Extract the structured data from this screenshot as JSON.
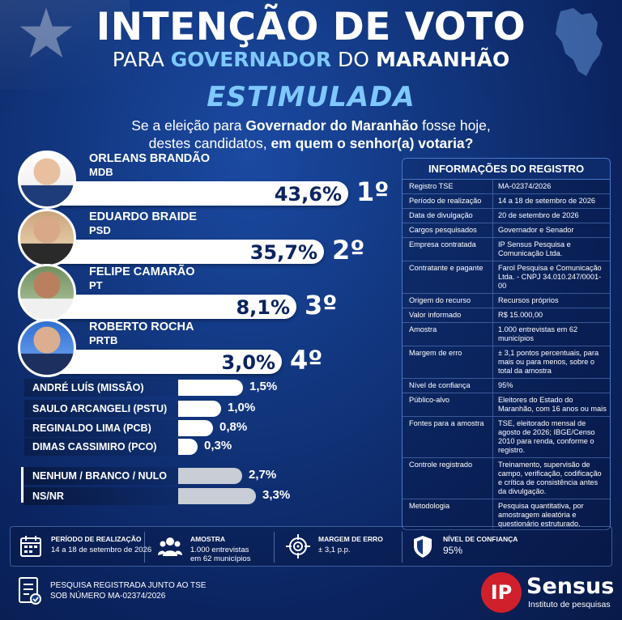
{
  "header": {
    "title": "INTENÇÃO DE VOTO",
    "subtitle_pre": "PARA",
    "subtitle_hl": "GOVERNADOR",
    "subtitle_mid": "DO",
    "subtitle_state": "MARANHÃO",
    "type": "ESTIMULADA",
    "question_1a": "Se a eleição para",
    "question_1b": "Governador do Maranhão",
    "question_1c": "fosse hoje,",
    "question_2a": "destes candidatos,",
    "question_2b": "em quem o senhor(a) votaria?"
  },
  "chart_data": {
    "type": "bar",
    "orientation": "horizontal",
    "unit": "%",
    "candidates": [
      {
        "name": "ORLEANS BRANDÃO",
        "party": "MDB",
        "value": 43.6,
        "label": "43,6%",
        "rank": "1º"
      },
      {
        "name": "EDUARDO BRAIDE",
        "party": "PSD",
        "value": 35.7,
        "label": "35,7%",
        "rank": "2º"
      },
      {
        "name": "FELIPE CAMARÃO",
        "party": "PT",
        "value": 8.1,
        "label": "8,1%",
        "rank": "3º"
      },
      {
        "name": "ROBERTO ROCHA",
        "party": "PRTB",
        "value": 3.0,
        "label": "3,0%",
        "rank": "4º"
      }
    ],
    "minor": [
      {
        "name": "ANDRÉ LUÍS (MISSÃO)",
        "value": 1.5,
        "label": "1,5%"
      },
      {
        "name": "SAULO ARCANGELI (PSTU)",
        "value": 1.0,
        "label": "1,0%"
      },
      {
        "name": "REGINALDO LIMA (PCB)",
        "value": 0.8,
        "label": "0,8%"
      },
      {
        "name": "DIMAS CASSIMIRO (PCO)",
        "value": 0.3,
        "label": "0,3%"
      }
    ],
    "other": [
      {
        "name": "NENHUM / BRANCO / NULO",
        "value": 2.7,
        "label": "2,7%"
      },
      {
        "name": "NS/NR",
        "value": 3.3,
        "label": "3,3%"
      }
    ]
  },
  "registry": {
    "title": "INFORMAÇÕES DO REGISTRO",
    "rows": [
      {
        "k": "Registro TSE",
        "v": "MA-02374/2026"
      },
      {
        "k": "Período de realização",
        "v": "14 a 18 de setembro de 2026"
      },
      {
        "k": "Data de divulgação",
        "v": "20 de setembro de 2026"
      },
      {
        "k": "Cargos pesquisados",
        "v": "Governador e Senador"
      },
      {
        "k": "Empresa contratada",
        "v": "IP Sensus Pesquisa e Comunicação Ltda."
      },
      {
        "k": "Contratante e pagante",
        "v": "Farol Pesquisa e Comunicação Ltda. - CNPJ 34.010.247/0001-00"
      },
      {
        "k": "Origem do recurso",
        "v": "Recursos próprios"
      },
      {
        "k": "Valor informado",
        "v": "R$ 15.000,00"
      },
      {
        "k": "Amostra",
        "v": "1.000 entrevistas em 62 municípios"
      },
      {
        "k": "Margem de erro",
        "v": "± 3,1 pontos percentuais, para mais ou para menos, sobre o total da amostra"
      },
      {
        "k": "Nível de confiança",
        "v": "95%"
      },
      {
        "k": "Público-alvo",
        "v": "Eleitores do Estado do Maranhão, com 16 anos ou mais"
      },
      {
        "k": "Fontes para a amostra",
        "v": "TSE, eleitorado mensal de agosto de 2026; IBGE/Censo 2010 para renda, conforme o registro."
      },
      {
        "k": "Controle registrado",
        "v": "Treinamento, supervisão de campo, verificação, codificação e crítica de consistência antes da divulgação."
      },
      {
        "k": "Metodologia",
        "v": "Pesquisa quantitativa, por amostragem aleatória e questionário estruturado."
      }
    ]
  },
  "footer": {
    "period_label": "PERÍODO DE REALIZAÇÃO",
    "period_value": "14 a 18 de setembro de 2026",
    "sample_label": "AMOSTRA",
    "sample_value_1": "1.000 entrevistas",
    "sample_value_2": "em 62 municípios",
    "margin_label": "MARGEM DE ERRO",
    "margin_value": "± 3,1 p.p.",
    "confidence_label": "NÍVEL DE CONFIANÇA",
    "confidence_value": "95%",
    "tse_line1": "PESQUISA REGISTRADA JUNTO AO TSE",
    "tse_line2": "SOB NÚMERO MA-02374/2026",
    "logo_mark": "IP",
    "logo_name": "Sensus",
    "logo_tagline": "Instituto de pesquisas"
  },
  "icons": {
    "calendar": "calendar-icon",
    "people": "people-icon",
    "target": "target-icon",
    "shield": "shield-icon",
    "document": "document-icon",
    "star": "star-icon",
    "map": "map-icon"
  },
  "colors": {
    "background": "#123780",
    "accent": "#7ec8ff",
    "bar": "#ffffff",
    "bar_other": "#c8cdd6",
    "logo_red": "#d0202c"
  }
}
